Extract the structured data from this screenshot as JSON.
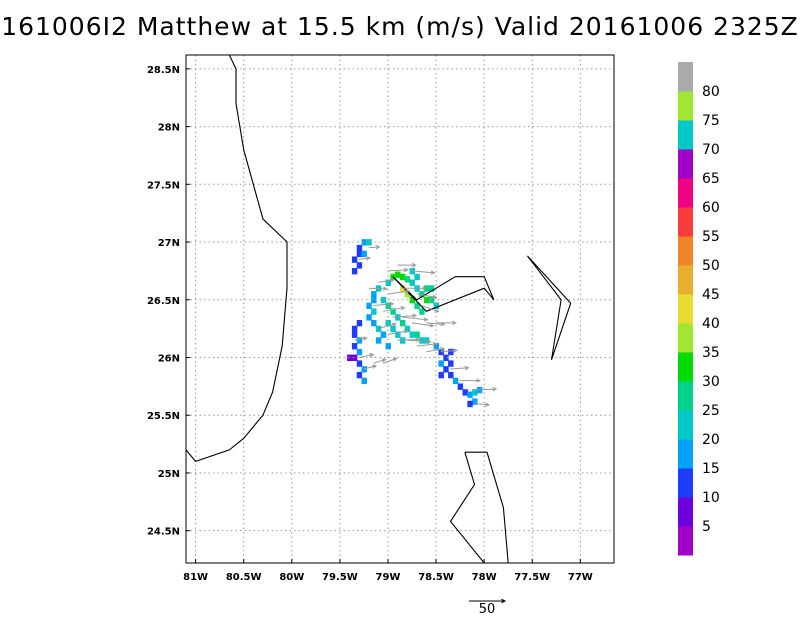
{
  "title": "161006I2 Matthew at 15.5 km (m/s) Valid 20161006 2325Z",
  "map": {
    "lon_range": [
      -81.1,
      -76.65
    ],
    "lat_range": [
      24.22,
      28.62
    ],
    "x_ticks": [
      {
        "value": -81,
        "label": "81W"
      },
      {
        "value": -80.5,
        "label": "80.5W"
      },
      {
        "value": -80,
        "label": "80W"
      },
      {
        "value": -79.5,
        "label": "79.5W"
      },
      {
        "value": -79,
        "label": "79W"
      },
      {
        "value": -78.5,
        "label": "78.5W"
      },
      {
        "value": -78,
        "label": "78W"
      },
      {
        "value": -77.5,
        "label": "77.5W"
      },
      {
        "value": -77,
        "label": "77W"
      }
    ],
    "y_ticks": [
      {
        "value": 24.5,
        "label": "24.5N"
      },
      {
        "value": 25,
        "label": "25N"
      },
      {
        "value": 25.5,
        "label": "25.5N"
      },
      {
        "value": 26,
        "label": "26N"
      },
      {
        "value": 26.5,
        "label": "26.5N"
      },
      {
        "value": 27,
        "label": "27N"
      },
      {
        "value": 27.5,
        "label": "27.5N"
      },
      {
        "value": 28,
        "label": "28N"
      },
      {
        "value": 28.5,
        "label": "28.5N"
      }
    ],
    "grid": true,
    "coastlines": [
      [
        [
          -80.65,
          28.62
        ],
        [
          -80.58,
          28.5
        ],
        [
          -80.58,
          28.2
        ],
        [
          -80.5,
          27.8
        ],
        [
          -80.4,
          27.5
        ],
        [
          -80.3,
          27.2
        ],
        [
          -80.05,
          27.0
        ],
        [
          -80.05,
          26.6
        ],
        [
          -80.1,
          26.1
        ],
        [
          -80.2,
          25.7
        ],
        [
          -80.3,
          25.5
        ],
        [
          -80.5,
          25.3
        ],
        [
          -80.65,
          25.2
        ],
        [
          -81.0,
          25.1
        ],
        [
          -81.1,
          25.2
        ]
      ],
      [
        [
          -78.95,
          26.7
        ],
        [
          -78.7,
          26.5
        ],
        [
          -78.5,
          26.6
        ],
        [
          -78.3,
          26.7
        ],
        [
          -78.0,
          26.7
        ],
        [
          -77.9,
          26.5
        ],
        [
          -78.0,
          26.6
        ],
        [
          -78.6,
          26.4
        ],
        [
          -78.95,
          26.7
        ]
      ],
      [
        [
          -77.55,
          26.88
        ],
        [
          -77.1,
          26.47
        ],
        [
          -77.3,
          25.98
        ],
        [
          -77.2,
          26.5
        ],
        [
          -77.55,
          26.88
        ]
      ],
      [
        [
          -78.2,
          25.18
        ],
        [
          -77.97,
          25.18
        ],
        [
          -77.8,
          24.7
        ],
        [
          -77.75,
          24.22
        ]
      ],
      [
        [
          -78.2,
          25.18
        ],
        [
          -78.1,
          24.9
        ],
        [
          -78.35,
          24.58
        ],
        [
          -78.0,
          24.22
        ]
      ]
    ],
    "wind_field": {
      "cell_size_deg": 0.05,
      "cells": [
        [
          -79.3,
          26.95,
          14
        ],
        [
          -79.25,
          27.0,
          18
        ],
        [
          -79.2,
          27.0,
          20
        ],
        [
          -79.3,
          26.9,
          12
        ],
        [
          -79.25,
          26.9,
          16
        ],
        [
          -79.35,
          26.85,
          10
        ],
        [
          -79.3,
          26.8,
          14
        ],
        [
          -79.35,
          26.75,
          12
        ],
        [
          -79.0,
          26.65,
          22
        ],
        [
          -78.95,
          26.7,
          30
        ],
        [
          -78.9,
          26.72,
          34
        ],
        [
          -78.85,
          26.7,
          32
        ],
        [
          -78.8,
          26.68,
          26
        ],
        [
          -78.75,
          26.65,
          24
        ],
        [
          -78.7,
          26.6,
          22
        ],
        [
          -78.65,
          26.55,
          26
        ],
        [
          -78.6,
          26.5,
          30
        ],
        [
          -78.55,
          26.5,
          28
        ],
        [
          -78.5,
          26.45,
          24
        ],
        [
          -79.1,
          26.6,
          20
        ],
        [
          -79.15,
          26.55,
          18
        ],
        [
          -79.15,
          26.5,
          16
        ],
        [
          -79.2,
          26.45,
          18
        ],
        [
          -79.15,
          26.4,
          20
        ],
        [
          -79.2,
          26.35,
          16
        ],
        [
          -79.15,
          26.3,
          18
        ],
        [
          -79.1,
          26.25,
          20
        ],
        [
          -79.1,
          26.15,
          18
        ],
        [
          -79.05,
          26.5,
          24
        ],
        [
          -79.0,
          26.45,
          26
        ],
        [
          -78.95,
          26.4,
          28
        ],
        [
          -78.9,
          26.35,
          24
        ],
        [
          -78.85,
          26.3,
          26
        ],
        [
          -78.8,
          26.25,
          22
        ],
        [
          -78.75,
          26.2,
          24
        ],
        [
          -78.7,
          26.2,
          26
        ],
        [
          -78.65,
          26.15,
          22
        ],
        [
          -78.6,
          26.15,
          20
        ],
        [
          -79.0,
          26.3,
          22
        ],
        [
          -78.95,
          26.25,
          20
        ],
        [
          -78.9,
          26.2,
          24
        ],
        [
          -78.85,
          26.15,
          22
        ],
        [
          -79.05,
          26.2,
          18
        ],
        [
          -79.0,
          26.1,
          16
        ],
        [
          -78.8,
          26.55,
          36
        ],
        [
          -78.75,
          26.5,
          34
        ],
        [
          -78.7,
          26.45,
          28
        ],
        [
          -78.65,
          26.4,
          26
        ],
        [
          -78.85,
          26.6,
          40
        ],
        [
          -78.7,
          26.7,
          24
        ],
        [
          -78.75,
          26.75,
          22
        ],
        [
          -78.6,
          26.6,
          28
        ],
        [
          -78.55,
          26.6,
          26
        ],
        [
          -78.5,
          26.1,
          18
        ],
        [
          -78.45,
          26.05,
          14
        ],
        [
          -78.4,
          26.0,
          12
        ],
        [
          -78.35,
          25.95,
          10
        ],
        [
          -78.45,
          25.95,
          16
        ],
        [
          -78.4,
          25.9,
          14
        ],
        [
          -78.35,
          25.85,
          12
        ],
        [
          -78.3,
          25.8,
          16
        ],
        [
          -78.25,
          25.75,
          14
        ],
        [
          -78.2,
          25.7,
          12
        ],
        [
          -78.15,
          25.68,
          18
        ],
        [
          -78.1,
          25.7,
          20
        ],
        [
          -78.05,
          25.72,
          18
        ],
        [
          -78.1,
          25.62,
          16
        ],
        [
          -78.15,
          25.6,
          14
        ],
        [
          -78.45,
          25.85,
          12
        ],
        [
          -78.35,
          26.05,
          10
        ],
        [
          -79.35,
          26.2,
          14
        ],
        [
          -79.3,
          26.15,
          16
        ],
        [
          -79.35,
          26.1,
          12
        ],
        [
          -79.3,
          26.05,
          18
        ],
        [
          -79.4,
          26.0,
          8
        ],
        [
          -79.35,
          26.0,
          6
        ],
        [
          -79.3,
          25.95,
          14
        ],
        [
          -79.25,
          25.9,
          16
        ],
        [
          -79.3,
          25.85,
          12
        ],
        [
          -79.25,
          25.8,
          18
        ],
        [
          -79.3,
          26.3,
          12
        ],
        [
          -79.35,
          26.25,
          10
        ]
      ]
    },
    "vectors": [
      [
        -79.0,
        26.75,
        22,
        3
      ],
      [
        -78.9,
        26.8,
        20,
        0
      ],
      [
        -78.75,
        26.75,
        25,
        -5
      ],
      [
        -79.1,
        26.65,
        18,
        10
      ],
      [
        -79.2,
        26.6,
        20,
        -2
      ],
      [
        -79.0,
        26.55,
        24,
        8
      ],
      [
        -78.85,
        26.6,
        26,
        0
      ],
      [
        -78.7,
        26.55,
        22,
        -10
      ],
      [
        -78.65,
        26.45,
        20,
        -20
      ],
      [
        -79.15,
        26.45,
        22,
        5
      ],
      [
        -79.05,
        26.4,
        24,
        10
      ],
      [
        -78.95,
        26.35,
        26,
        4
      ],
      [
        -78.85,
        26.35,
        28,
        -6
      ],
      [
        -78.75,
        26.3,
        24,
        -8
      ],
      [
        -78.6,
        26.3,
        20,
        -5
      ],
      [
        -78.5,
        26.3,
        22,
        0
      ],
      [
        -79.1,
        26.25,
        20,
        15
      ],
      [
        -79.0,
        26.2,
        22,
        10
      ],
      [
        -78.9,
        26.15,
        24,
        2
      ],
      [
        -78.8,
        26.15,
        26,
        -4
      ],
      [
        -78.7,
        26.1,
        22,
        6
      ],
      [
        -78.6,
        26.05,
        20,
        10
      ],
      [
        -78.45,
        26.05,
        18,
        5
      ],
      [
        -78.35,
        25.9,
        20,
        4
      ],
      [
        -78.25,
        25.8,
        22,
        0
      ],
      [
        -78.1,
        25.72,
        24,
        2
      ],
      [
        -78.1,
        25.6,
        16,
        -5
      ],
      [
        -79.35,
        26.15,
        14,
        10
      ],
      [
        -79.3,
        26.0,
        16,
        12
      ],
      [
        -79.25,
        25.9,
        14,
        15
      ],
      [
        -79.3,
        26.85,
        12,
        8
      ],
      [
        -79.2,
        26.95,
        12,
        5
      ],
      [
        -79.15,
        25.95,
        14,
        18
      ],
      [
        -79.05,
        25.95,
        16,
        20
      ]
    ],
    "reference_vector": {
      "magnitude": 50,
      "label": "50"
    }
  },
  "colorbar": {
    "bins": [
      {
        "color": "#a000c8",
        "label": "5"
      },
      {
        "color": "#6e00dc",
        "label": "10"
      },
      {
        "color": "#1e3cff",
        "label": "15"
      },
      {
        "color": "#00a0ff",
        "label": "20"
      },
      {
        "color": "#00c8c8",
        "label": "25"
      },
      {
        "color": "#00d28c",
        "label": "30"
      },
      {
        "color": "#00dc00",
        "label": "35"
      },
      {
        "color": "#a0e632",
        "label": "40"
      },
      {
        "color": "#e6dc32",
        "label": "45"
      },
      {
        "color": "#e6af2d",
        "label": "50"
      },
      {
        "color": "#f08228",
        "label": "55"
      },
      {
        "color": "#fa3c3c",
        "label": "60"
      },
      {
        "color": "#f00082",
        "label": "65"
      },
      {
        "color": "#a000c8",
        "label": "70"
      },
      {
        "color": "#00c8c8",
        "label": "75"
      },
      {
        "color": "#a0e632",
        "label": "80"
      },
      {
        "color": "#aaaaaa",
        "label": ""
      }
    ]
  }
}
